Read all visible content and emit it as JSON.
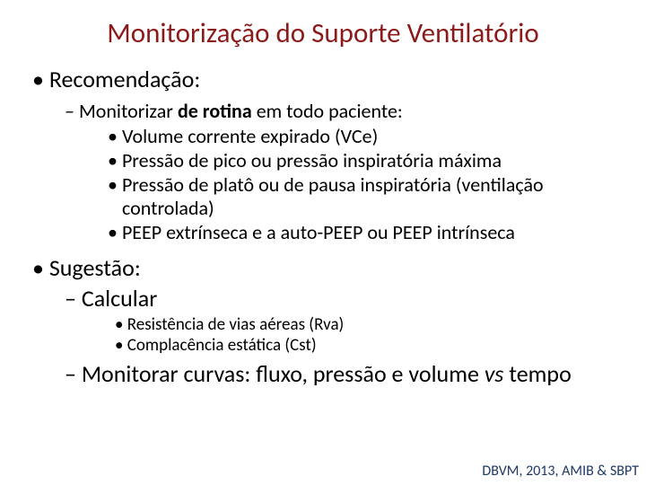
{
  "colors": {
    "title": "#8b1a1a",
    "body": "#000000",
    "footer": "#1f3864",
    "background": "#ffffff"
  },
  "title": "Monitorização do Suporte Ventilatório",
  "rec": {
    "heading": "Recomendação:",
    "intro_prefix": "Monitorizar ",
    "intro_bold": "de rotina",
    "intro_suffix": " em todo paciente:",
    "items": [
      "Volume corrente expirado (VCe)",
      "Pressão de pico ou pressão inspiratória máxima",
      "Pressão de platô ou de pausa inspiratória (ventilação controlada)",
      "PEEP extrínseca e a auto-PEEP ou PEEP intrínseca"
    ]
  },
  "sug": {
    "heading": "Sugestão:",
    "calc": "Calcular",
    "calc_items": [
      "Resistência de vias aéreas (Rva)",
      "Complacência estática (Cst)"
    ],
    "curves_prefix": "Monitorar curvas: fluxo, pressão e volume ",
    "curves_italic": "vs",
    "curves_suffix": " tempo"
  },
  "footer": "DBVM, 2013, AMIB & SBPT"
}
